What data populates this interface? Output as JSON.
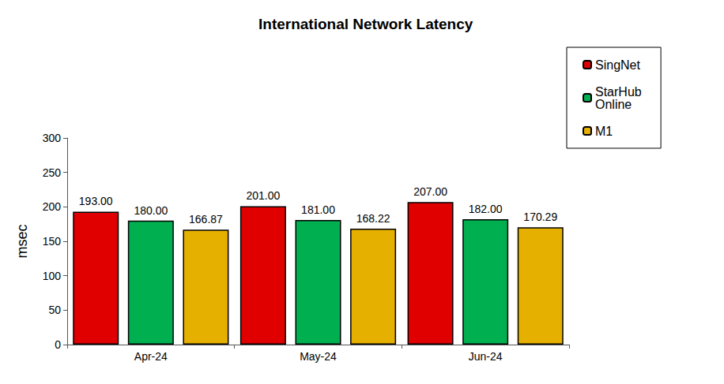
{
  "chart_data": {
    "type": "bar",
    "title": "International Network Latency",
    "y_label": "msec",
    "categories": [
      "Apr-24",
      "May-24",
      "Jun-24"
    ],
    "series": [
      {
        "name": "SingNet",
        "color": "#e00000",
        "values": [
          193,
          201,
          207
        ],
        "value_labels": [
          "193.00",
          "201.00",
          "207.00"
        ]
      },
      {
        "name": "StarHub Online",
        "color": "#00b050",
        "values": [
          180,
          181,
          182
        ],
        "value_labels": [
          "180.00",
          "181.00",
          "182.00"
        ]
      },
      {
        "name": "M1",
        "color": "#e6b000",
        "values": [
          166.87,
          168.22,
          170.29
        ],
        "value_labels": [
          "166.87",
          "168.22",
          "170.29"
        ]
      }
    ],
    "ylim": [
      0,
      300
    ],
    "yticks": [
      0,
      50,
      100,
      150,
      200,
      250,
      300
    ],
    "grid": false,
    "legend": "top-right",
    "data_labels": true
  }
}
